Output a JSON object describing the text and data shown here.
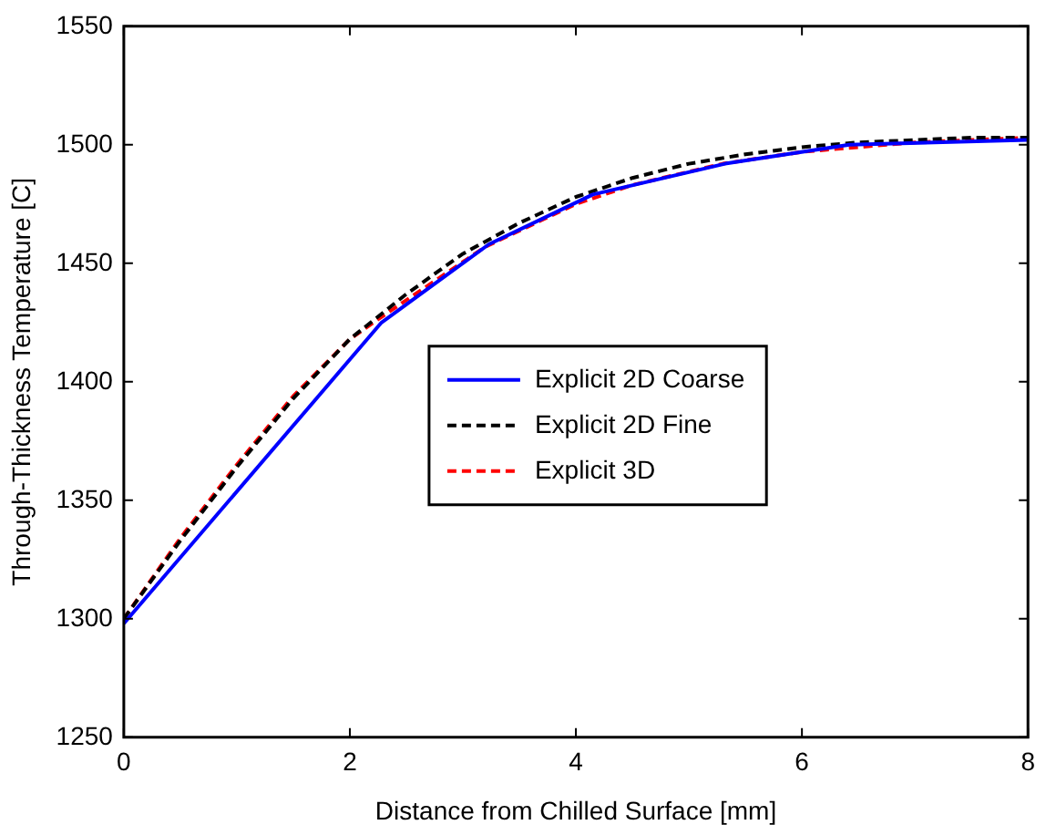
{
  "chart_data": {
    "type": "line",
    "xlabel": "Distance from Chilled Surface [mm]",
    "ylabel": "Through-Thickness Temperature [C]",
    "xlim": [
      0,
      8
    ],
    "xticks": [
      0,
      2,
      4,
      6,
      8
    ],
    "ylim": [
      1250,
      1550
    ],
    "yticks": [
      1250,
      1300,
      1350,
      1400,
      1450,
      1500,
      1550
    ],
    "grid": false,
    "legend": "center",
    "marker": "none",
    "series": [
      {
        "name": "Explicit 2D Coarse",
        "color": "#0000ff",
        "line_style": "solid",
        "x": [
          0,
          2.28,
          3.23,
          4.15,
          5.32,
          6.42,
          8
        ],
        "values": [
          1298,
          1425,
          1458,
          1479,
          1492,
          1500,
          1502
        ]
      },
      {
        "name": "Explicit 2D Fine",
        "color": "#000000",
        "line_style": "dashed",
        "x": [
          0,
          0.5,
          1,
          1.5,
          2,
          2.5,
          3,
          3.5,
          4,
          4.5,
          5,
          5.5,
          6,
          6.5,
          7,
          7.5,
          8
        ],
        "values": [
          1300,
          1333,
          1364,
          1393,
          1418,
          1437,
          1454,
          1467,
          1478,
          1486,
          1492,
          1496,
          1499,
          1501,
          1502,
          1503,
          1503
        ]
      },
      {
        "name": "Explicit 3D",
        "color": "#ff0000",
        "line_style": "dashed",
        "x": [
          0,
          0.5,
          1,
          1.5,
          2,
          2.3,
          3.2,
          4,
          4.5,
          5.3,
          6,
          6.5,
          7,
          7.5,
          8
        ],
        "values": [
          1300,
          1334,
          1365,
          1394,
          1418,
          1428,
          1457,
          1475,
          1483,
          1492,
          1497,
          1499,
          1501,
          1502,
          1503
        ]
      }
    ]
  }
}
